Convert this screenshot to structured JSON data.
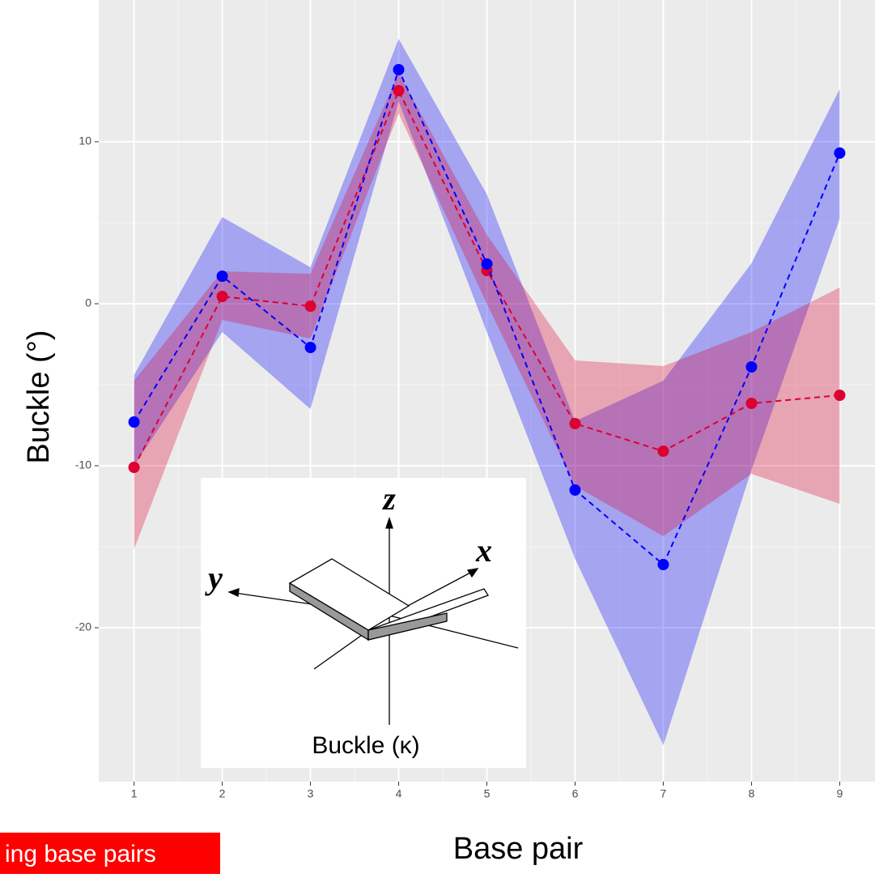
{
  "chart_data": {
    "type": "line",
    "x_label": "Base pair",
    "y_label": "Buckle (°)",
    "x": [
      1,
      2,
      3,
      4,
      5,
      6,
      7,
      8,
      9
    ],
    "series": [
      {
        "color": "#0000ff",
        "values": [
          -7.3,
          1.7,
          -2.7,
          14.45,
          2.45,
          -11.5,
          -16.1,
          -3.9,
          9.3
        ],
        "upper": [
          -4.4,
          5.35,
          2.25,
          16.35,
          6.75,
          -7.25,
          -4.75,
          2.5,
          13.25
        ],
        "lower": [
          -10,
          -1.75,
          -6.5,
          12.5,
          -1.75,
          -15.75,
          -27.25,
          -10.25,
          5.25
        ]
      },
      {
        "color": "#dd0030",
        "values": [
          -10.1,
          0.45,
          -0.15,
          13.15,
          2.05,
          -7.4,
          -9.1,
          -6.15,
          -5.65
        ],
        "upper": [
          -4.75,
          2,
          1.85,
          14.25,
          4.25,
          -3.5,
          -3.85,
          -1.75,
          1
        ],
        "lower": [
          -15.15,
          -1,
          -2.15,
          11.75,
          0,
          -11.25,
          -14.35,
          -10.5,
          -12.35
        ]
      }
    ],
    "xlim": [
      0.6,
      9.4
    ],
    "xticks": [
      1,
      2,
      3,
      4,
      5,
      6,
      7,
      8,
      9
    ],
    "ylim": [
      -29.5,
      18.75
    ],
    "yticks": [
      -20,
      -10,
      0,
      10
    ],
    "grid": true,
    "annotation": "ing base pairs",
    "inset": {
      "z_label": "z",
      "x_label": "x",
      "y_label": "y",
      "caption": "Buckle (κ)"
    }
  }
}
